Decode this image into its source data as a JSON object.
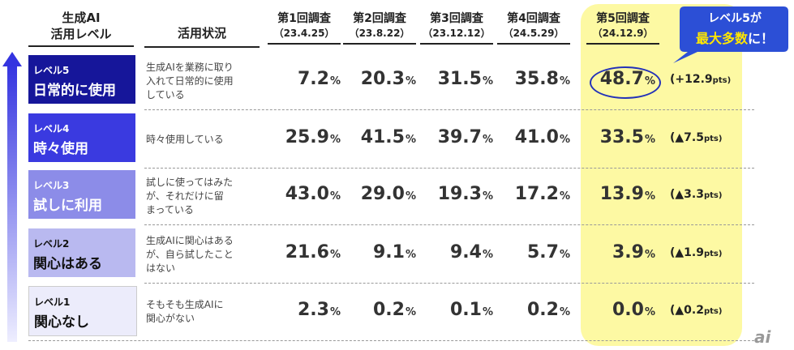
{
  "header": {
    "level": [
      "生成AI",
      "活用レベル"
    ],
    "status": "活用状況",
    "surveys": [
      {
        "label": "第1回調査",
        "date": "（23.4.25）"
      },
      {
        "label": "第2回調査",
        "date": "（23.8.22）"
      },
      {
        "label": "第3回調査",
        "date": "（23.12.12）"
      },
      {
        "label": "第4回調査",
        "date": "（24.5.29）"
      },
      {
        "label": "第5回調査",
        "date": "（24.12.9）"
      }
    ]
  },
  "unit": "%",
  "change_unit": "pts)",
  "rows": [
    {
      "level": "レベル5",
      "name": "日常的に使用",
      "status": [
        "生成AIを業務に取り",
        "入れて日常的に使用",
        "している"
      ],
      "values": [
        "7.2",
        "20.3",
        "31.5",
        "35.8",
        "48.7"
      ],
      "change": "(+12.9"
    },
    {
      "level": "レベル4",
      "name": "時々使用",
      "status": [
        "時々使用している"
      ],
      "values": [
        "25.9",
        "41.5",
        "39.7",
        "41.0",
        "33.5"
      ],
      "change": "(▲7.5"
    },
    {
      "level": "レベル3",
      "name": "試しに利用",
      "status": [
        "試しに使ってはみた",
        "が、それだけに留",
        "まっている"
      ],
      "values": [
        "43.0",
        "29.0",
        "19.3",
        "17.2",
        "13.9"
      ],
      "change": "(▲3.3"
    },
    {
      "level": "レベル2",
      "name": "関心はある",
      "status": [
        "生成AIに関心はある",
        "が、自ら試したこと",
        "はない"
      ],
      "values": [
        "21.6",
        "9.1",
        "9.4",
        "5.7",
        "3.9"
      ],
      "change": "(▲1.9"
    },
    {
      "level": "レベル1",
      "name": "関心なし",
      "status": [
        "そもそも生成AIに",
        "関心がない"
      ],
      "values": [
        "2.3",
        "0.2",
        "0.1",
        "0.2",
        "0.0"
      ],
      "change": "(▲0.2"
    }
  ],
  "callout": {
    "line1": "レベル5が",
    "highlight": "最大多数",
    "rest": "に！"
  },
  "logo": "ai"
}
